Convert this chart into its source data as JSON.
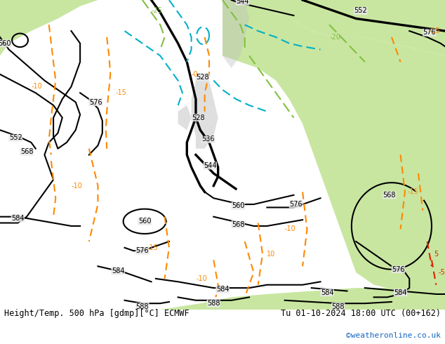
{
  "title_left": "Height/Temp. 500 hPa [gdmp][°C] ECMWF",
  "title_right": "Tu 01-10-2024 18:00 UTC (00+162)",
  "watermark": "©weatheronline.co.uk",
  "bg_ocean": "#e8e8e8",
  "bg_green": "#c8e6a0",
  "bg_gray": "#c0c0c0",
  "black": "#000000",
  "orange": "#ff8800",
  "cyan": "#00b0c8",
  "lgreen": "#80c040",
  "red": "#dd2200",
  "watermark_color": "#1565c0",
  "title_fontsize": 8.5,
  "label_fs": 7
}
